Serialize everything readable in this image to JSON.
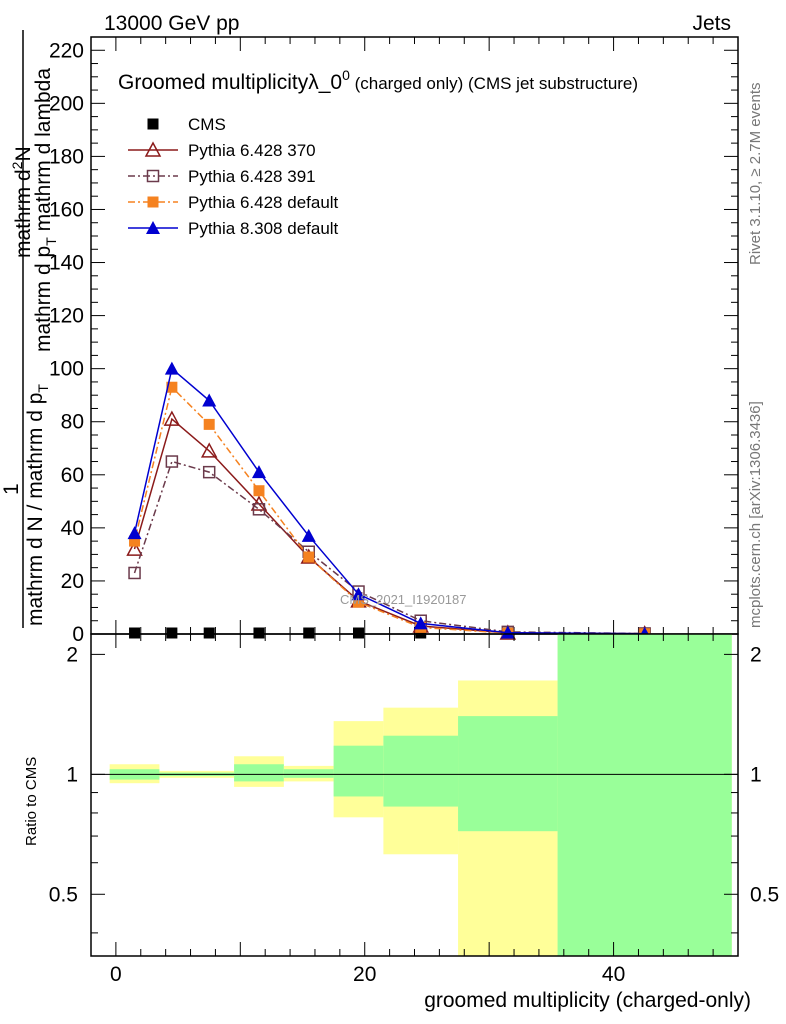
{
  "header": {
    "left": "13000 GeV pp",
    "right": "Jets"
  },
  "side_text": {
    "top": "Rivet 3.1.10, ≥ 2.7M events",
    "bottom": "mcplots.cern.ch [arXiv:1306.3436]"
  },
  "watermark": "CMS_2021_I1920187",
  "colors": {
    "cms": "#000000",
    "p370": "#8b1a1a",
    "p391": "#6b3a4b",
    "p6def": "#f58220",
    "p8def": "#0000d0",
    "band_yellow": "#ffff99",
    "band_green": "#99ff99"
  },
  "chart_data": [
    {
      "type": "line",
      "title": "Groomed multiplicityλ_0",
      "title_sup": "0",
      "title_suffix": " (charged only) (CMS jet substructure)",
      "ylabel_line1": "mathrm d",
      "ylabel_line1_sup": "2",
      "ylabel_line1_rest": "N",
      "ylabel_line2_a": "mathrm d p",
      "ylabel_line2_sub": "T",
      "ylabel_line2_b": " mathrm d lambda",
      "ylabel_num": "1",
      "ylabel_den_a": "mathrm d N / mathrm d p",
      "ylabel_den_b": "T",
      "ylim": [
        0,
        225
      ],
      "yticks": [
        0,
        20,
        40,
        60,
        80,
        100,
        120,
        140,
        160,
        180,
        200,
        220
      ],
      "xlim": [
        -2,
        50
      ],
      "legend_position": "top-left",
      "series": [
        {
          "name": "CMS",
          "key": "cms",
          "marker": "square-filled",
          "x": [
            1.5,
            4.5,
            7.5,
            11.5,
            15.5,
            19.5,
            24.5,
            31.5,
            42.5
          ],
          "y": [
            0.5,
            0.5,
            0.5,
            0.5,
            0.5,
            0.5,
            0.5,
            0.5,
            0.5
          ]
        },
        {
          "name": "Pythia 6.428 370",
          "key": "p370",
          "marker": "triangle-open",
          "dash": "",
          "x": [
            1.5,
            4.5,
            7.5,
            11.5,
            15.5,
            19.5,
            24.5,
            31.5,
            42.5
          ],
          "y": [
            32,
            81,
            69,
            49,
            29,
            12.5,
            3,
            0.4,
            0.1
          ]
        },
        {
          "name": "Pythia 6.428 391",
          "key": "p391",
          "marker": "square-open",
          "dash": "7,3,2,3",
          "x": [
            1.5,
            4.5,
            7.5,
            11.5,
            15.5,
            19.5,
            24.5,
            31.5,
            42.5
          ],
          "y": [
            23,
            65,
            61,
            47,
            31,
            16,
            5,
            0.8,
            0.2
          ]
        },
        {
          "name": "Pythia 6.428 default",
          "key": "p6def",
          "marker": "square-filled",
          "dash": "7,3,2,3",
          "x": [
            1.5,
            4.5,
            7.5,
            11.5,
            15.5,
            19.5,
            24.5,
            31.5,
            42.5
          ],
          "y": [
            35,
            93,
            79,
            54,
            29,
            12,
            2.5,
            0.3,
            0.1
          ]
        },
        {
          "name": "Pythia 8.308 default",
          "key": "p8def",
          "marker": "triangle-filled",
          "dash": "",
          "x": [
            1.5,
            4.5,
            7.5,
            11.5,
            15.5,
            19.5,
            24.5,
            31.5,
            42.5
          ],
          "y": [
            38,
            100,
            88,
            61,
            37,
            15,
            4,
            0.5,
            0.1
          ]
        }
      ]
    },
    {
      "type": "area",
      "ylabel": "Ratio to CMS",
      "xlabel": "groomed multiplicity (charged-only)",
      "ylim": [
        0.35,
        2.25
      ],
      "yticks": [
        0.5,
        1,
        2
      ],
      "ytick_labels": [
        "0.5",
        "1",
        "2"
      ],
      "xlim": [
        -2,
        50
      ],
      "xticks": [
        0,
        20,
        40
      ],
      "bins": [
        {
          "lo": -0.5,
          "hi": 3.5,
          "yellow": [
            0.95,
            1.06
          ],
          "green": [
            0.97,
            1.03
          ]
        },
        {
          "lo": 3.5,
          "hi": 9.5,
          "yellow": [
            0.98,
            1.02
          ],
          "green": [
            0.99,
            1.01
          ]
        },
        {
          "lo": 9.5,
          "hi": 13.5,
          "yellow": [
            0.93,
            1.11
          ],
          "green": [
            0.96,
            1.06
          ]
        },
        {
          "lo": 13.5,
          "hi": 17.5,
          "yellow": [
            0.96,
            1.05
          ],
          "green": [
            0.98,
            1.03
          ]
        },
        {
          "lo": 17.5,
          "hi": 21.5,
          "yellow": [
            0.78,
            1.36
          ],
          "green": [
            0.88,
            1.18
          ]
        },
        {
          "lo": 21.5,
          "hi": 27.5,
          "yellow": [
            0.63,
            1.47
          ],
          "green": [
            0.83,
            1.25
          ]
        },
        {
          "lo": 27.5,
          "hi": 35.5,
          "yellow": [
            0.35,
            1.72
          ],
          "green": [
            0.72,
            1.4
          ]
        },
        {
          "lo": 35.5,
          "hi": 49.5,
          "yellow": [
            0.35,
            2.25
          ],
          "green": [
            0.35,
            2.25
          ]
        }
      ]
    }
  ]
}
